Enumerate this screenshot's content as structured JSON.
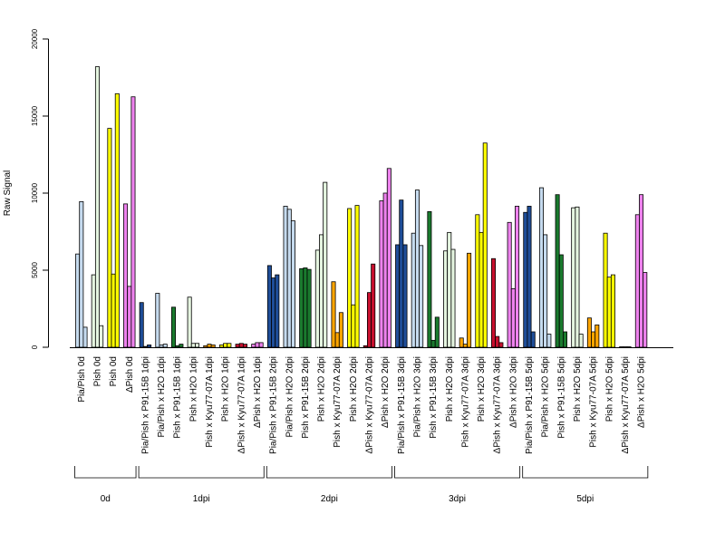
{
  "chart_data": {
    "type": "bar",
    "title": "",
    "xlabel": "",
    "ylabel": "Raw Signal",
    "ylim": [
      0,
      20000
    ],
    "yticks": [
      0,
      5000,
      10000,
      15000,
      20000
    ],
    "grid": false,
    "legend": "none",
    "categories": [
      "Pia/Pish 0d",
      "Pish 0d",
      "Pish 0d",
      "ΔPish 0d",
      "Pia/Pish x P91-15B 1dpi",
      "Pia/Pish x H2O 1dpi",
      "Pish x P91-15B 1dpi",
      "Pish x H2O 1dpi",
      "Pish x Kyu77-07A 1dpi",
      "Pish x H2O 1dpi",
      "ΔPish x Kyu77-07A 1dpi",
      "ΔPish x H2O 1dpi",
      "Pia/Pish x P91-15B 2dpi",
      "Pia/Pish x H2O 2dpi",
      "Pish x P91-15B 2dpi",
      "Pish x H2O 2dpi",
      "Pish x Kyu77-07A 2dpi",
      "Pish x H2O 2dpi",
      "ΔPish x Kyu77-07A 2dpi",
      "ΔPish x H2O 2dpi",
      "Pia/Pish x P91-15B 3dpi",
      "Pia/Pish x H2O 3dpi",
      "Pish x P91-15B 3dpi",
      "Pish x H2O 3dpi",
      "Pish x Kyu77-07A 3dpi",
      "Pish x H2O 3dpi",
      "ΔPish x Kyu77-07A 3dpi",
      "ΔPish x H2O 3dpi",
      "Pia/Pish x P91-15B 5dpi",
      "Pia/Pish x H2O 5dpi",
      "Pish x P91-15B 5dpi",
      "Pish x H2O 5dpi",
      "Pish x Kyu77-07A 5dpi",
      "Pish x H2O 5dpi",
      "ΔPish x Kyu77-07A 5dpi",
      "ΔPish x H2O 5dpi"
    ],
    "colors": [
      "#c6dbef",
      "#e5f5e0",
      "#ffff00",
      "#ee82ee",
      "#1f4e99",
      "#c6dbef",
      "#1a7a2e",
      "#e5f5e0",
      "#ffa500",
      "#ffff00",
      "#c8102e",
      "#ee82ee",
      "#1f4e99",
      "#c6dbef",
      "#1a7a2e",
      "#e5f5e0",
      "#ffa500",
      "#ffff00",
      "#c8102e",
      "#ee82ee",
      "#1f4e99",
      "#c6dbef",
      "#1a7a2e",
      "#e5f5e0",
      "#ffa500",
      "#ffff00",
      "#c8102e",
      "#ee82ee",
      "#1f4e99",
      "#c6dbef",
      "#1a7a2e",
      "#e5f5e0",
      "#ffa500",
      "#ffff00",
      "#c8102e",
      "#ee82ee"
    ],
    "values": [
      [
        6050,
        9450,
        1300
      ],
      [
        4700,
        18200,
        1400
      ],
      [
        14200,
        4750,
        16450
      ],
      [
        9300,
        3950,
        16250
      ],
      [
        2900,
        50,
        150
      ],
      [
        3500,
        150,
        200
      ],
      [
        2600,
        100,
        200
      ],
      [
        3250,
        250,
        250
      ],
      [
        100,
        200,
        150
      ],
      [
        150,
        250,
        250
      ],
      [
        200,
        250,
        200
      ],
      [
        200,
        300,
        300
      ],
      [
        5300,
        4500,
        4700
      ],
      [
        9150,
        8950,
        8200
      ],
      [
        5100,
        5150,
        5050
      ],
      [
        6300,
        7300,
        10700
      ],
      [
        4250,
        950,
        2250
      ],
      [
        9000,
        2750,
        9200
      ],
      [
        100,
        3550,
        5400
      ],
      [
        9500,
        10000,
        11600
      ],
      [
        6650,
        9550,
        6650
      ],
      [
        7400,
        10200,
        6600
      ],
      [
        8800,
        450,
        1950
      ],
      [
        6250,
        7450,
        6350
      ],
      [
        600,
        200,
        6100
      ],
      [
        8600,
        7450,
        13250
      ],
      [
        5750,
        700,
        300
      ],
      [
        8100,
        3800,
        9150
      ],
      [
        8750,
        9150,
        1000
      ],
      [
        10350,
        7300,
        850
      ],
      [
        9900,
        6000,
        1000
      ],
      [
        9050,
        9100,
        850
      ],
      [
        1900,
        1000,
        1450
      ],
      [
        7400,
        4550,
        4700
      ],
      [
        30,
        30,
        30
      ],
      [
        8600,
        9900,
        4850
      ]
    ],
    "groups": [
      {
        "label": "0d",
        "count": 4
      },
      {
        "label": "1dpi",
        "count": 8
      },
      {
        "label": "2dpi",
        "count": 8
      },
      {
        "label": "3dpi",
        "count": 8
      },
      {
        "label": "5dpi",
        "count": 8
      }
    ]
  }
}
